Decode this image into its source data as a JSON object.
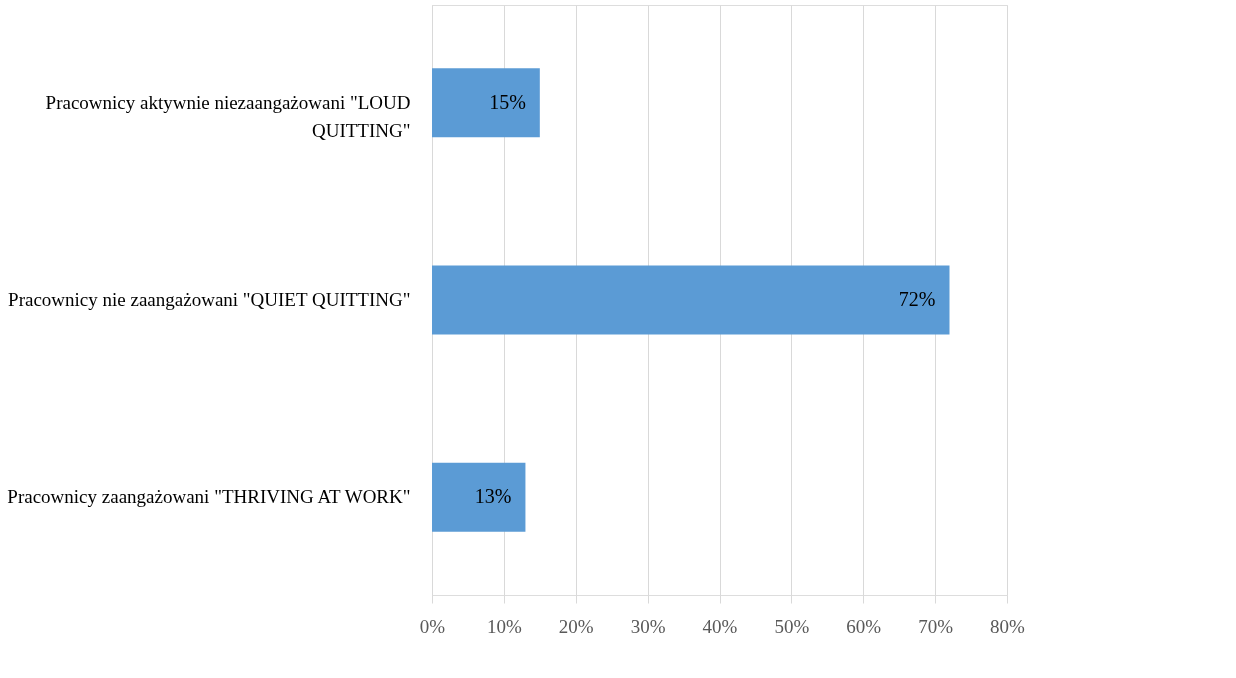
{
  "chart_data": {
    "type": "bar",
    "orientation": "horizontal",
    "categories": [
      "Pracownicy aktywnie niezaangażowani \"LOUD QUITTING\"",
      "Pracownicy nie zaangażowani \"QUIET QUITTING\"",
      "Pracownicy zaangażowani \"THRIVING AT WORK\""
    ],
    "values": [
      15,
      72,
      13
    ],
    "color": "#5b9bd5",
    "value_labels": [
      "15%",
      "72%",
      "13%"
    ],
    "xlim": [
      0,
      80
    ],
    "xticks": [
      {
        "value": 0,
        "label": "0%"
      },
      {
        "value": 10,
        "label": "10%"
      },
      {
        "value": 20,
        "label": "20%"
      },
      {
        "value": 30,
        "label": "30%"
      },
      {
        "value": 40,
        "label": "40%"
      },
      {
        "value": 50,
        "label": "50%"
      },
      {
        "value": 60,
        "label": "60%"
      },
      {
        "value": 70,
        "label": "70%"
      },
      {
        "value": 80,
        "label": "80%"
      }
    ],
    "grid": "x"
  }
}
